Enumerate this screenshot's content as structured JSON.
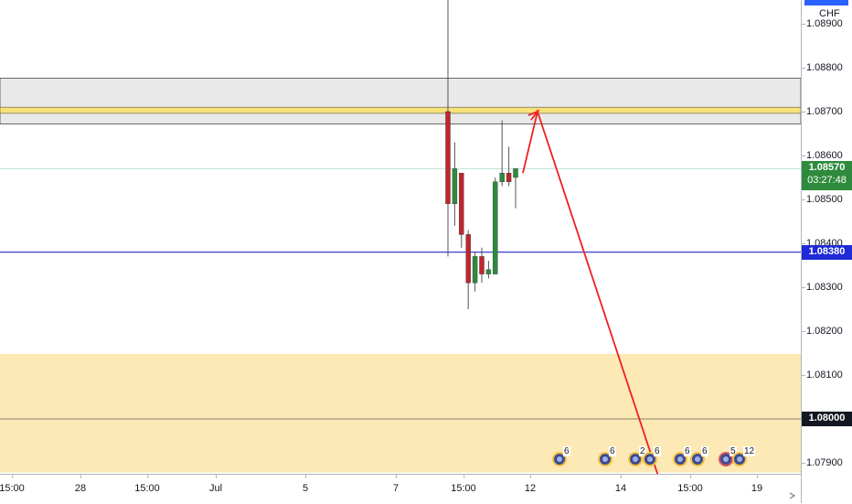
{
  "symbol": {
    "currency": "CHF"
  },
  "price_axis": {
    "ticks": [
      "1.08900",
      "1.08800",
      "1.08700",
      "1.08600",
      "1.08500",
      "1.08400",
      "1.08300",
      "1.08200",
      "1.08100",
      "1.08000",
      "1.07900"
    ]
  },
  "price_badges": {
    "current_price": "1.08570",
    "countdown": "03:27:48",
    "blue_line": "1.08380",
    "support_level": "1.08000"
  },
  "time_axis": {
    "ticks": [
      "15:00",
      "28",
      "15:00",
      "Jul",
      "5",
      "7",
      "15:00",
      "12",
      "14",
      "15:00",
      "19"
    ]
  },
  "events": [
    {
      "count": "6"
    },
    {
      "count": "6"
    },
    {
      "count": "2"
    },
    {
      "count": "6"
    },
    {
      "count": "6"
    },
    {
      "count": "6"
    },
    {
      "count": "5"
    },
    {
      "count": "12"
    }
  ],
  "colors": {
    "bull": "#26a69a",
    "bull_fill": "#2e8b3d",
    "bear": "#c0262d",
    "arrow": "#ef1f1f",
    "resistance_zone": "#e9e9e9",
    "resistance_line": "#f7e27a",
    "demand_zone": "#fde9b5",
    "blue_line": "#3f3fcf",
    "current_badge": "#26a69a"
  },
  "chart_data": {
    "type": "candlestick",
    "y_range": [
      1.0787,
      1.0898
    ],
    "candles": [
      {
        "o": 1.087,
        "h": 1.0898,
        "l": 1.0837,
        "c": 1.0849
      },
      {
        "o": 1.0849,
        "h": 1.0863,
        "l": 1.0844,
        "c": 1.0857
      },
      {
        "o": 1.0856,
        "h": 1.0856,
        "l": 1.0839,
        "c": 1.0842
      },
      {
        "o": 1.0842,
        "h": 1.0843,
        "l": 1.0825,
        "c": 1.0831
      },
      {
        "o": 1.0831,
        "h": 1.0838,
        "l": 1.0829,
        "c": 1.0837
      },
      {
        "o": 1.0837,
        "h": 1.0839,
        "l": 1.0831,
        "c": 1.0833
      },
      {
        "o": 1.0833,
        "h": 1.0836,
        "l": 1.0832,
        "c": 1.0834
      },
      {
        "o": 1.0833,
        "h": 1.0855,
        "l": 1.0833,
        "c": 1.0854
      },
      {
        "o": 1.0854,
        "h": 1.0868,
        "l": 1.0853,
        "c": 1.0856
      },
      {
        "o": 1.0856,
        "h": 1.0862,
        "l": 1.0853,
        "c": 1.0854
      },
      {
        "o": 1.0855,
        "h": 1.0857,
        "l": 1.0848,
        "c": 1.0857
      }
    ],
    "resistance_zone": [
      1.08672,
      1.08776
    ],
    "resistance_band": [
      1.08696,
      1.0871
    ],
    "demand_zone": [
      1.07878,
      1.08148
    ],
    "support_line": 1.08,
    "horizontal_line": 1.0838,
    "current_price": 1.0857,
    "projection": [
      {
        "price": 1.0856
      },
      {
        "price": 1.087
      },
      {
        "price": 1.0787
      }
    ]
  }
}
